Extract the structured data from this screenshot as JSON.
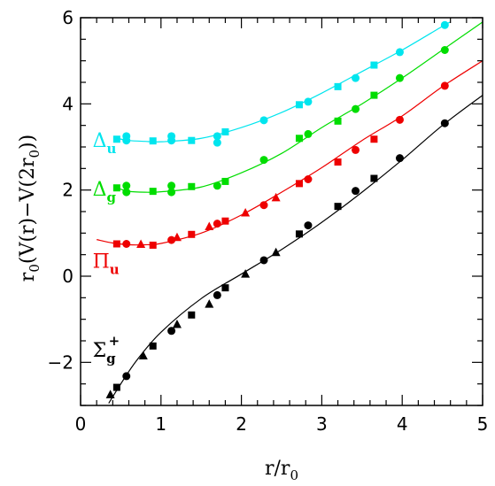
{
  "chart_data": {
    "type": "scatter",
    "title": "",
    "xlabel": "r/r₀",
    "ylabel": "r₀(V(r)−V(2r₀))",
    "xlim": [
      0,
      5
    ],
    "ylim": [
      -3,
      6
    ],
    "xticks": [
      "0",
      "1",
      "2",
      "3",
      "4",
      "5"
    ],
    "yticks": [
      "−2",
      "0",
      "2",
      "4",
      "6"
    ],
    "grid": false,
    "series": [
      {
        "name": "Σg+",
        "color": "#000000",
        "curve": [
          [
            0.35,
            -2.95
          ],
          [
            0.5,
            -2.5
          ],
          [
            0.7,
            -1.95
          ],
          [
            1.0,
            -1.3
          ],
          [
            1.5,
            -0.52
          ],
          [
            2.0,
            0.05
          ],
          [
            2.5,
            0.62
          ],
          [
            3.0,
            1.25
          ],
          [
            3.5,
            1.95
          ],
          [
            4.0,
            2.7
          ],
          [
            4.5,
            3.5
          ],
          [
            5.0,
            4.2
          ]
        ],
        "points": [
          {
            "x": 0.37,
            "y": -2.75,
            "m": "tri"
          },
          {
            "x": 0.45,
            "y": -2.58,
            "m": "sq"
          },
          {
            "x": 0.57,
            "y": -2.32,
            "m": "dot"
          },
          {
            "x": 0.78,
            "y": -1.85,
            "m": "tri"
          },
          {
            "x": 0.9,
            "y": -1.62,
            "m": "sq"
          },
          {
            "x": 1.13,
            "y": -1.27,
            "m": "dot"
          },
          {
            "x": 1.2,
            "y": -1.12,
            "m": "tri"
          },
          {
            "x": 1.38,
            "y": -0.9,
            "m": "sq"
          },
          {
            "x": 1.6,
            "y": -0.65,
            "m": "tri"
          },
          {
            "x": 1.7,
            "y": -0.44,
            "m": "dot"
          },
          {
            "x": 1.8,
            "y": -0.27,
            "m": "sq"
          },
          {
            "x": 2.05,
            "y": 0.05,
            "m": "tri"
          },
          {
            "x": 2.28,
            "y": 0.37,
            "m": "dot"
          },
          {
            "x": 2.43,
            "y": 0.55,
            "m": "tri"
          },
          {
            "x": 2.72,
            "y": 0.98,
            "m": "sq"
          },
          {
            "x": 2.83,
            "y": 1.18,
            "m": "dot"
          },
          {
            "x": 3.2,
            "y": 1.62,
            "m": "sq"
          },
          {
            "x": 3.42,
            "y": 1.98,
            "m": "dot"
          },
          {
            "x": 3.65,
            "y": 2.27,
            "m": "sq"
          },
          {
            "x": 3.97,
            "y": 2.74,
            "m": "dot"
          },
          {
            "x": 4.53,
            "y": 3.55,
            "m": "dot"
          }
        ]
      },
      {
        "name": "Πu",
        "color": "#ee0000",
        "curve": [
          [
            0.2,
            0.85
          ],
          [
            0.4,
            0.77
          ],
          [
            0.6,
            0.73
          ],
          [
            0.8,
            0.73
          ],
          [
            1.0,
            0.76
          ],
          [
            1.5,
            1.0
          ],
          [
            2.0,
            1.42
          ],
          [
            2.5,
            1.95
          ],
          [
            3.0,
            2.52
          ],
          [
            3.5,
            3.15
          ],
          [
            4.0,
            3.72
          ],
          [
            4.5,
            4.4
          ],
          [
            5.0,
            5.0
          ]
        ],
        "points": [
          {
            "x": 0.45,
            "y": 0.75,
            "m": "sq"
          },
          {
            "x": 0.57,
            "y": 0.75,
            "m": "dot"
          },
          {
            "x": 0.75,
            "y": 0.74,
            "m": "tri"
          },
          {
            "x": 0.9,
            "y": 0.72,
            "m": "sq"
          },
          {
            "x": 1.13,
            "y": 0.84,
            "m": "dot"
          },
          {
            "x": 1.2,
            "y": 0.9,
            "m": "tri"
          },
          {
            "x": 1.38,
            "y": 0.97,
            "m": "sq"
          },
          {
            "x": 1.6,
            "y": 1.15,
            "m": "tri"
          },
          {
            "x": 1.7,
            "y": 1.22,
            "m": "dot"
          },
          {
            "x": 1.8,
            "y": 1.28,
            "m": "sq"
          },
          {
            "x": 2.05,
            "y": 1.47,
            "m": "tri"
          },
          {
            "x": 2.28,
            "y": 1.65,
            "m": "dot"
          },
          {
            "x": 2.43,
            "y": 1.82,
            "m": "tri"
          },
          {
            "x": 2.72,
            "y": 2.15,
            "m": "sq"
          },
          {
            "x": 2.83,
            "y": 2.25,
            "m": "dot"
          },
          {
            "x": 3.2,
            "y": 2.65,
            "m": "sq"
          },
          {
            "x": 3.42,
            "y": 2.93,
            "m": "dot"
          },
          {
            "x": 3.65,
            "y": 3.18,
            "m": "sq"
          },
          {
            "x": 3.97,
            "y": 3.63,
            "m": "dot"
          },
          {
            "x": 4.53,
            "y": 4.42,
            "m": "dot"
          }
        ]
      },
      {
        "name": "Δg",
        "color": "#00dd00",
        "curve": [
          [
            0.45,
            2.05
          ],
          [
            0.6,
            1.97
          ],
          [
            0.8,
            1.95
          ],
          [
            1.0,
            1.96
          ],
          [
            1.5,
            2.07
          ],
          [
            2.0,
            2.4
          ],
          [
            2.5,
            2.85
          ],
          [
            3.0,
            3.45
          ],
          [
            3.5,
            4.0
          ],
          [
            4.0,
            4.6
          ],
          [
            4.5,
            5.25
          ],
          [
            5.0,
            5.9
          ]
        ],
        "points": [
          {
            "x": 0.45,
            "y": 2.05,
            "m": "sq"
          },
          {
            "x": 0.57,
            "y": 1.95,
            "m": "dot"
          },
          {
            "x": 0.57,
            "y": 2.1,
            "m": "dot"
          },
          {
            "x": 0.9,
            "y": 1.97,
            "m": "sq"
          },
          {
            "x": 1.13,
            "y": 2.1,
            "m": "dot"
          },
          {
            "x": 1.13,
            "y": 1.95,
            "m": "dot"
          },
          {
            "x": 1.38,
            "y": 2.08,
            "m": "sq"
          },
          {
            "x": 1.7,
            "y": 2.1,
            "m": "dot"
          },
          {
            "x": 1.8,
            "y": 2.2,
            "m": "sq"
          },
          {
            "x": 2.28,
            "y": 2.7,
            "m": "dot"
          },
          {
            "x": 2.72,
            "y": 3.2,
            "m": "sq"
          },
          {
            "x": 2.83,
            "y": 3.3,
            "m": "dot"
          },
          {
            "x": 3.2,
            "y": 3.6,
            "m": "sq"
          },
          {
            "x": 3.42,
            "y": 3.88,
            "m": "dot"
          },
          {
            "x": 3.65,
            "y": 4.2,
            "m": "sq"
          },
          {
            "x": 3.97,
            "y": 4.6,
            "m": "dot"
          },
          {
            "x": 4.53,
            "y": 5.25,
            "m": "dot"
          }
        ]
      },
      {
        "name": "Δu",
        "color": "#00e5ee",
        "curve": [
          [
            0.45,
            3.2
          ],
          [
            0.6,
            3.15
          ],
          [
            0.8,
            3.13
          ],
          [
            1.0,
            3.12
          ],
          [
            1.5,
            3.2
          ],
          [
            2.0,
            3.45
          ],
          [
            2.5,
            3.8
          ],
          [
            3.0,
            4.25
          ],
          [
            3.5,
            4.75
          ],
          [
            4.0,
            5.25
          ],
          [
            4.5,
            5.8
          ],
          [
            4.6,
            5.9
          ]
        ],
        "points": [
          {
            "x": 0.45,
            "y": 3.18,
            "m": "sq"
          },
          {
            "x": 0.57,
            "y": 3.15,
            "m": "dot"
          },
          {
            "x": 0.57,
            "y": 3.25,
            "m": "dot"
          },
          {
            "x": 0.9,
            "y": 3.14,
            "m": "sq"
          },
          {
            "x": 1.13,
            "y": 3.15,
            "m": "dot"
          },
          {
            "x": 1.13,
            "y": 3.25,
            "m": "dot"
          },
          {
            "x": 1.38,
            "y": 3.15,
            "m": "sq"
          },
          {
            "x": 1.7,
            "y": 3.25,
            "m": "dot"
          },
          {
            "x": 1.7,
            "y": 3.1,
            "m": "dot"
          },
          {
            "x": 1.8,
            "y": 3.35,
            "m": "sq"
          },
          {
            "x": 2.28,
            "y": 3.62,
            "m": "dot"
          },
          {
            "x": 2.72,
            "y": 3.98,
            "m": "sq"
          },
          {
            "x": 2.83,
            "y": 4.05,
            "m": "dot"
          },
          {
            "x": 3.2,
            "y": 4.4,
            "m": "sq"
          },
          {
            "x": 3.42,
            "y": 4.6,
            "m": "dot"
          },
          {
            "x": 3.65,
            "y": 4.9,
            "m": "sq"
          },
          {
            "x": 3.97,
            "y": 5.2,
            "m": "dot"
          },
          {
            "x": 4.53,
            "y": 5.83,
            "m": "dot"
          }
        ]
      }
    ],
    "labels": [
      {
        "main": "Δ",
        "sub": "u",
        "sup": "",
        "color": "#00e5ee",
        "x": 0.15,
        "y": 3.0
      },
      {
        "main": "Δ",
        "sub": "g",
        "sup": "",
        "color": "#00dd00",
        "x": 0.15,
        "y": 1.87
      },
      {
        "main": "Π",
        "sub": "u",
        "sup": "",
        "color": "#ee0000",
        "x": 0.15,
        "y": 0.2
      },
      {
        "main": "Σ",
        "sub": "g",
        "sup": "+",
        "color": "#000000",
        "x": 0.15,
        "y": -1.87
      }
    ]
  }
}
